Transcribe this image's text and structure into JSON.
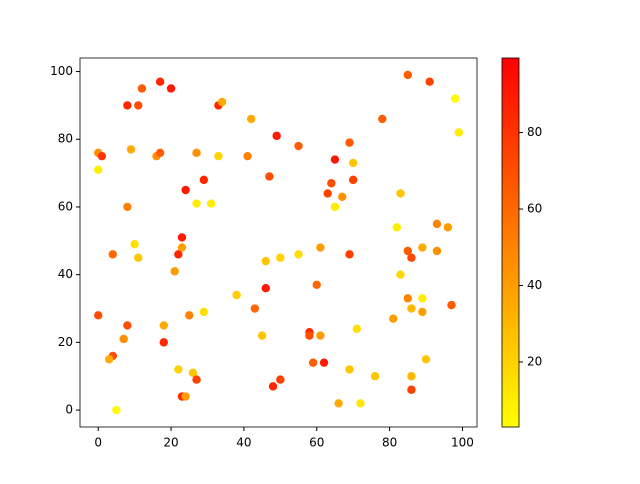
{
  "chart_data": {
    "type": "scatter",
    "x": [
      0,
      1,
      0,
      0,
      4,
      3,
      5,
      4,
      8,
      11,
      12,
      17,
      20,
      9,
      16,
      17,
      8,
      10,
      11,
      8,
      7,
      18,
      18,
      22,
      23,
      24,
      26,
      27,
      25,
      29,
      21,
      22,
      23,
      23,
      24,
      27,
      31,
      29,
      27,
      33,
      34,
      33,
      38,
      42,
      41,
      43,
      45,
      46,
      46,
      47,
      48,
      50,
      50,
      49,
      55,
      55,
      58,
      58,
      59,
      60,
      61,
      61,
      62,
      63,
      64,
      65,
      65,
      67,
      66,
      69,
      70,
      70,
      69,
      69,
      71,
      72,
      76,
      78,
      81,
      82,
      83,
      83,
      85,
      91,
      98,
      99,
      85,
      86,
      85,
      86,
      89,
      89,
      89,
      93,
      93,
      96,
      97,
      90,
      86,
      86
    ],
    "values": [
      76,
      75,
      71,
      28,
      16,
      15,
      0,
      46,
      90,
      90,
      95,
      97,
      95,
      77,
      75,
      76,
      60,
      49,
      45,
      25,
      21,
      25,
      20,
      12,
      4,
      4,
      11,
      9,
      28,
      29,
      41,
      46,
      48,
      51,
      65,
      61,
      61,
      68,
      76,
      90,
      91,
      75,
      34,
      86,
      75,
      30,
      22,
      44,
      36,
      69,
      7,
      9,
      45,
      81,
      46,
      78,
      23,
      22,
      14,
      37,
      48,
      22,
      14,
      64,
      67,
      74,
      60,
      63,
      2,
      79,
      73,
      68,
      46,
      12,
      24,
      2,
      10,
      86,
      27,
      54,
      64,
      40,
      99,
      97,
      92,
      82,
      47,
      45,
      33,
      30,
      33,
      48,
      29,
      55,
      47,
      54,
      31,
      15,
      10,
      6
    ],
    "color_values": [
      45,
      80,
      10,
      70,
      70,
      35,
      5,
      60,
      85,
      70,
      65,
      85,
      90,
      35,
      45,
      65,
      50,
      15,
      25,
      70,
      45,
      35,
      85,
      20,
      85,
      40,
      25,
      75,
      50,
      15,
      40,
      85,
      40,
      90,
      90,
      10,
      10,
      85,
      45,
      85,
      35,
      20,
      22,
      35,
      50,
      60,
      25,
      25,
      90,
      70,
      85,
      75,
      20,
      90,
      15,
      65,
      85,
      70,
      65,
      60,
      40,
      40,
      90,
      75,
      70,
      90,
      10,
      45,
      35,
      65,
      25,
      75,
      75,
      25,
      15,
      12,
      25,
      65,
      40,
      10,
      25,
      18,
      65,
      75,
      5,
      10,
      65,
      72,
      50,
      30,
      10,
      35,
      40,
      50,
      45,
      40,
      65,
      25,
      30,
      75
    ],
    "colormap": "autumn_r",
    "clim": [
      3,
      99.5
    ],
    "xlim": [
      -5,
      104
    ],
    "ylim": [
      -5,
      104
    ],
    "xticks": [
      0,
      20,
      40,
      60,
      80,
      100
    ],
    "yticks": [
      0,
      20,
      40,
      60,
      80,
      100
    ],
    "cticks": [
      20,
      40,
      60,
      80
    ]
  }
}
